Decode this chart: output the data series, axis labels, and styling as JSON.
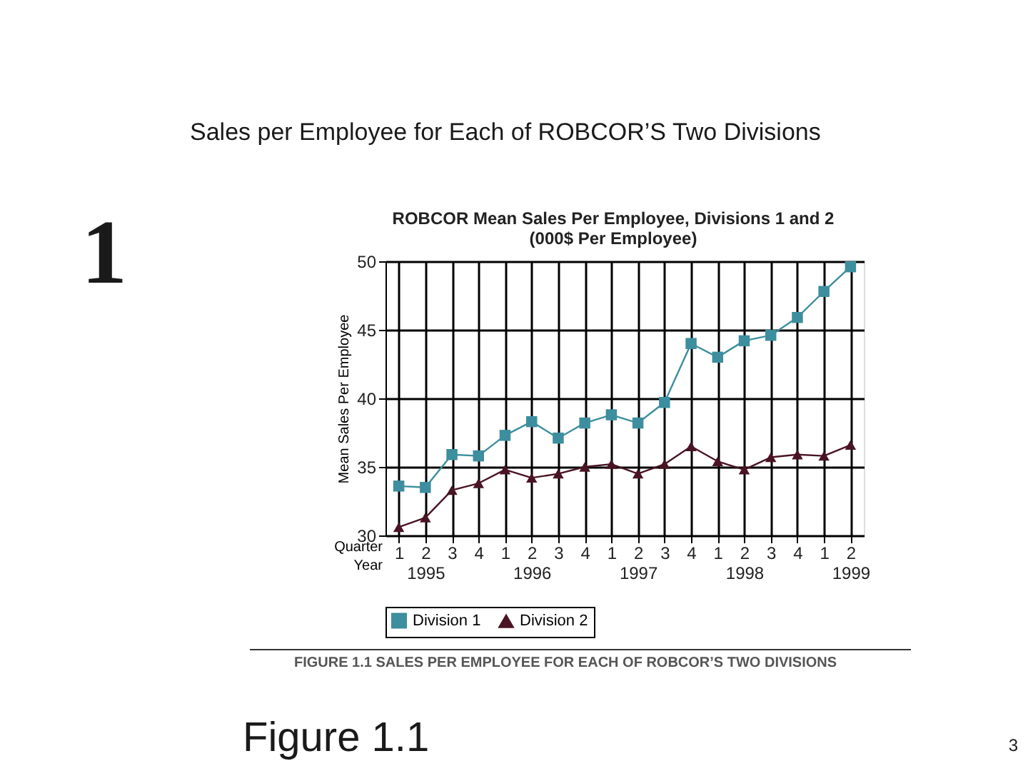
{
  "chart_data": {
    "type": "line",
    "title": "ROBCOR Mean Sales Per Employee, Divisions 1 and 2",
    "subtitle": "(000$ Per Employee)",
    "xlabel": "Quarter\nYear",
    "ylabel": "Mean Sales Per Employee",
    "categories": [
      "1",
      "2\n1995",
      "3",
      "4",
      "1",
      "2\n1996",
      "3",
      "4",
      "1",
      "2\n1997",
      "3",
      "4",
      "1",
      "2\n1998",
      "3",
      "4",
      "1",
      "2\n1999"
    ],
    "series": [
      {
        "name": "Division 1",
        "color": "#3d8e9e",
        "marker": "square",
        "values": [
          33.6,
          33.5,
          35.9,
          35.8,
          37.3,
          38.3,
          37.1,
          38.2,
          38.8,
          38.2,
          39.7,
          44.0,
          43.0,
          44.2,
          44.6,
          45.9,
          47.8,
          49.6
        ]
      },
      {
        "name": "Division 2",
        "color": "#4a1424",
        "marker": "triangle",
        "values": [
          30.6,
          31.3,
          33.3,
          33.8,
          34.8,
          34.2,
          34.5,
          35.0,
          35.2,
          34.5,
          35.2,
          36.5,
          35.4,
          34.8,
          35.7,
          35.9,
          35.8,
          36.6
        ]
      }
    ],
    "ylim": [
      30,
      50
    ],
    "yticks": [
      30,
      35,
      40,
      45,
      50
    ],
    "grid": true,
    "legend": "bottom",
    "line_style": "solid",
    "annotations": [
      "Sales per Employee for Each of ROBCOR’S Two Divisions",
      "1",
      "FIGURE 1.1 SALES PER EMPLOYEE FOR EACH OF ROBCOR’S TWO DIVISIONS",
      "Figure 1.1",
      "3"
    ]
  }
}
